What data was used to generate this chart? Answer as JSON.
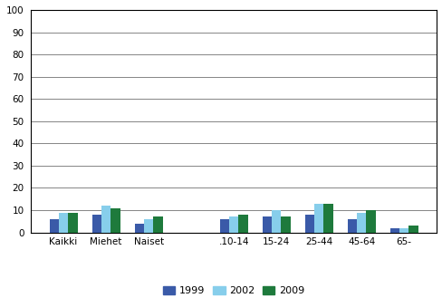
{
  "categories": [
    "Kaikki",
    "Miehet",
    "Naiset",
    "",
    ".10-14",
    "15-24",
    "25-44",
    "45-64",
    "65-"
  ],
  "series": {
    "1999": [
      6,
      8,
      4,
      0,
      6,
      7,
      8,
      6,
      2
    ],
    "2002": [
      9,
      12,
      6,
      0,
      7,
      10,
      13,
      9,
      2
    ],
    "2009": [
      9,
      11,
      7,
      0,
      8,
      7,
      13,
      10,
      3
    ]
  },
  "colors": {
    "1999": "#3A5AA8",
    "2002": "#87CEEB",
    "2009": "#1E7A3C"
  },
  "ylim": [
    0,
    100
  ],
  "yticks": [
    0,
    10,
    20,
    30,
    40,
    50,
    60,
    70,
    80,
    90,
    100
  ],
  "legend_labels": [
    "1999",
    "2002",
    "2009"
  ],
  "bar_width": 0.22,
  "figsize": [
    4.89,
    3.29
  ],
  "dpi": 100
}
